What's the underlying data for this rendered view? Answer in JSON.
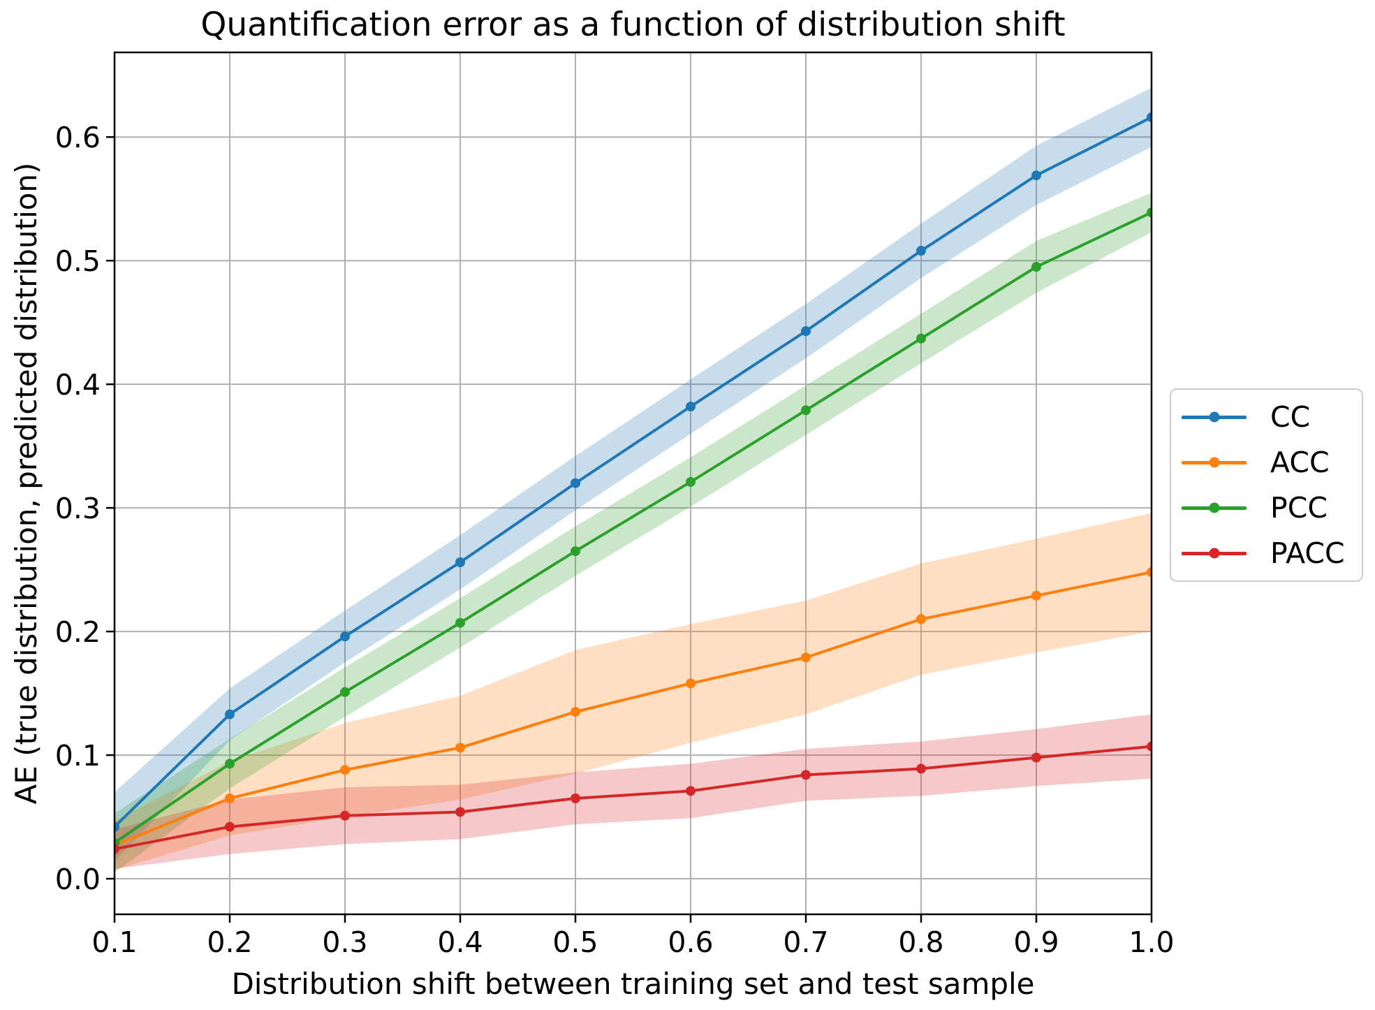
{
  "chart_data": {
    "type": "line",
    "title": "Quantification error as a function of distribution shift",
    "xlabel": "Distribution shift between training set and test sample",
    "ylabel": "AE (true distribution, predicted distribution)",
    "x": [
      0.1,
      0.2,
      0.3,
      0.4,
      0.5,
      0.6,
      0.7,
      0.8,
      0.9,
      1.0
    ],
    "x_tick_labels": [
      "0.1",
      "0.2",
      "0.3",
      "0.4",
      "0.5",
      "0.6",
      "0.7",
      "0.8",
      "0.9",
      "1.0"
    ],
    "y_ticks": [
      0.0,
      0.1,
      0.2,
      0.3,
      0.4,
      0.5,
      0.6
    ],
    "y_tick_labels": [
      "0.0",
      "0.1",
      "0.2",
      "0.3",
      "0.4",
      "0.5",
      "0.6"
    ],
    "xlim": [
      0.1,
      1.0
    ],
    "ylim": [
      -0.0288,
      0.6685
    ],
    "grid": true,
    "grid_color": "#b0b0b0",
    "axis_color": "#000000",
    "band_alpha": 0.25,
    "legend_position": "center right, outside axes",
    "series": [
      {
        "name": "CC",
        "color": "#1f77b4",
        "values": [
          0.042,
          0.133,
          0.196,
          0.256,
          0.32,
          0.382,
          0.443,
          0.508,
          0.569,
          0.616
        ],
        "band_halfwidth": [
          0.028,
          0.021,
          0.021,
          0.022,
          0.022,
          0.022,
          0.022,
          0.022,
          0.024,
          0.024
        ]
      },
      {
        "name": "ACC",
        "color": "#ff7f0e",
        "values": [
          0.027,
          0.065,
          0.088,
          0.106,
          0.135,
          0.158,
          0.179,
          0.21,
          0.229,
          0.248
        ],
        "band_halfwidth": [
          0.02,
          0.03,
          0.038,
          0.042,
          0.05,
          0.048,
          0.046,
          0.045,
          0.046,
          0.048
        ]
      },
      {
        "name": "PCC",
        "color": "#2ca02c",
        "values": [
          0.029,
          0.093,
          0.151,
          0.207,
          0.265,
          0.321,
          0.379,
          0.437,
          0.495,
          0.539
        ],
        "band_halfwidth": [
          0.024,
          0.02,
          0.02,
          0.02,
          0.02,
          0.02,
          0.02,
          0.02,
          0.021,
          0.016
        ]
      },
      {
        "name": "PACC",
        "color": "#d62728",
        "values": [
          0.024,
          0.042,
          0.051,
          0.054,
          0.065,
          0.071,
          0.084,
          0.089,
          0.098,
          0.107
        ],
        "band_halfwidth": [
          0.016,
          0.022,
          0.023,
          0.022,
          0.021,
          0.022,
          0.021,
          0.022,
          0.023,
          0.026
        ]
      }
    ]
  }
}
